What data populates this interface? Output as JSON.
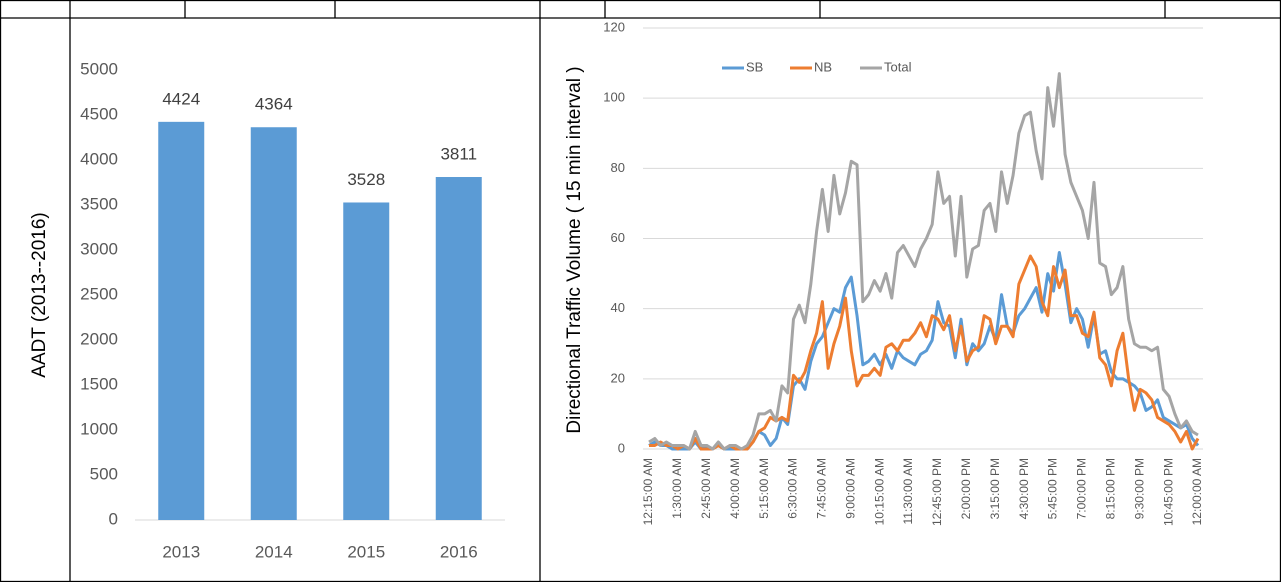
{
  "chart_data": [
    {
      "type": "bar",
      "y_label": "AADT (2013--2016)",
      "categories": [
        "2013",
        "2014",
        "2015",
        "2016"
      ],
      "values": [
        4424,
        4364,
        3528,
        3811
      ],
      "color": "#5b9bd5",
      "ylim": [
        0,
        5000
      ],
      "yticks": [
        0,
        500,
        1000,
        1500,
        2000,
        2500,
        3000,
        3500,
        4000,
        4500,
        5000
      ],
      "grid": false
    },
    {
      "type": "line",
      "y_label": "Directional Traffic Volume ( 15 min interval )",
      "categories": [
        "12:15:00 AM",
        null,
        null,
        null,
        null,
        "1:30:00 AM",
        null,
        null,
        null,
        null,
        "2:45:00 AM",
        null,
        null,
        null,
        null,
        "4:00:00 AM",
        null,
        null,
        null,
        null,
        "5:15:00 AM",
        null,
        null,
        null,
        null,
        "6:30:00 AM",
        null,
        null,
        null,
        null,
        "7:45:00 AM",
        null,
        null,
        null,
        null,
        "9:00:00 AM",
        null,
        null,
        null,
        null,
        "10:15:00 AM",
        null,
        null,
        null,
        null,
        "11:30:00 AM",
        null,
        null,
        null,
        null,
        "12:45:00 PM",
        null,
        null,
        null,
        null,
        "2:00:00 PM",
        null,
        null,
        null,
        null,
        "3:15:00 PM",
        null,
        null,
        null,
        null,
        "4:30:00 PM",
        null,
        null,
        null,
        null,
        "5:45:00 PM",
        null,
        null,
        null,
        null,
        "7:00:00 PM",
        null,
        null,
        null,
        null,
        "8:15:00 PM",
        null,
        null,
        null,
        null,
        "9:30:00 PM",
        null,
        null,
        null,
        null,
        "10:45:00 PM",
        null,
        null,
        null,
        null,
        "12:00:00 AM"
      ],
      "series": [
        {
          "name": "SB",
          "color": "#5b9bd5",
          "values": [
            1,
            2,
            1,
            1,
            0,
            0,
            0,
            0,
            2,
            0,
            1,
            0,
            1,
            0,
            0,
            0,
            0,
            0,
            2,
            5,
            4,
            1,
            3,
            9,
            7,
            18,
            20,
            17,
            25,
            30,
            32,
            36,
            40,
            39,
            46,
            49,
            38,
            24,
            25,
            27,
            24,
            27,
            23,
            28,
            26,
            25,
            24,
            27,
            28,
            31,
            42,
            36,
            35,
            26,
            37,
            24,
            30,
            28,
            30,
            35,
            31,
            44,
            35,
            33,
            38,
            40,
            43,
            46,
            39,
            50,
            45,
            56,
            47,
            36,
            40,
            37,
            29,
            38,
            27,
            28,
            22,
            20,
            20,
            19,
            18,
            16,
            11,
            12,
            14,
            9,
            8,
            7,
            6,
            7,
            3,
            1
          ]
        },
        {
          "name": "NB",
          "color": "#ed7d31",
          "values": [
            1,
            1,
            2,
            1,
            1,
            0,
            1,
            0,
            3,
            0,
            0,
            0,
            1,
            0,
            1,
            0,
            0,
            0,
            2,
            5,
            6,
            9,
            8,
            9,
            8,
            21,
            19,
            22,
            28,
            33,
            42,
            23,
            30,
            35,
            43,
            28,
            18,
            21,
            21,
            23,
            21,
            29,
            30,
            28,
            31,
            31,
            33,
            36,
            32,
            38,
            37,
            34,
            38,
            28,
            35,
            25,
            28,
            29,
            38,
            37,
            30,
            35,
            35,
            32,
            47,
            51,
            55,
            52,
            42,
            38,
            52,
            46,
            51,
            38,
            38,
            33,
            32,
            39,
            26,
            24,
            18,
            28,
            33,
            20,
            11,
            17,
            16,
            14,
            9,
            8,
            7,
            5,
            2,
            5,
            0,
            3
          ]
        },
        {
          "name": "Total",
          "color": "#a5a5a5",
          "values": [
            2,
            3,
            1,
            2,
            1,
            1,
            1,
            0,
            5,
            1,
            1,
            0,
            2,
            0,
            1,
            1,
            0,
            1,
            4,
            10,
            10,
            11,
            8,
            18,
            16,
            37,
            41,
            36,
            47,
            62,
            74,
            62,
            78,
            67,
            73,
            82,
            81,
            42,
            44,
            48,
            45,
            50,
            43,
            56,
            58,
            55,
            52,
            57,
            60,
            64,
            79,
            70,
            72,
            55,
            72,
            49,
            57,
            58,
            68,
            70,
            62,
            79,
            70,
            78,
            90,
            95,
            96,
            85,
            77,
            103,
            92,
            107,
            84,
            76,
            72,
            68,
            60,
            76,
            53,
            52,
            44,
            46,
            52,
            37,
            30,
            29,
            29,
            28,
            29,
            17,
            15,
            10,
            6,
            8,
            5,
            4
          ]
        }
      ],
      "ylim": [
        0,
        120
      ],
      "yticks": [
        0,
        20,
        40,
        60,
        80,
        100,
        120
      ],
      "grid": true,
      "legend": "top"
    }
  ]
}
